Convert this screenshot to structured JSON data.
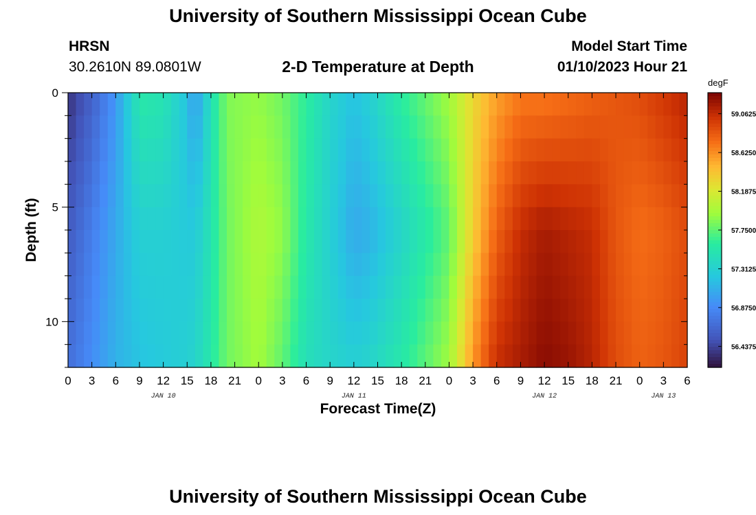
{
  "page": {
    "title_top": "University of Southern Mississippi Ocean Cube",
    "title_bottom": "University of Southern Mississippi Ocean Cube",
    "station_code": "HRSN",
    "station_coords": "30.2610N  89.0801W",
    "start_label": "Model Start Time",
    "start_value": "01/10/2023 Hour 21"
  },
  "chart_data": {
    "type": "heatmap",
    "title": "2-D Temperature at Depth",
    "xlabel": "Forecast Time(Z)",
    "ylabel": "Depth (ft)",
    "colorbar_units": "degF",
    "x_hours": [
      0,
      78
    ],
    "x_tick_labels": [
      "0",
      "3",
      "6",
      "9",
      "12",
      "15",
      "18",
      "21",
      "0",
      "3",
      "6",
      "9",
      "12",
      "15",
      "18",
      "21",
      "0",
      "3",
      "6",
      "9",
      "12",
      "15",
      "18",
      "21",
      "0",
      "3",
      "6"
    ],
    "date_labels": [
      {
        "label": "JAN 10",
        "hour": 12
      },
      {
        "label": "JAN 11",
        "hour": 36
      },
      {
        "label": "JAN 12",
        "hour": 60
      },
      {
        "label": "JAN 13",
        "hour": 75
      }
    ],
    "y_ticks": [
      0,
      5,
      10
    ],
    "ylim": [
      0,
      12
    ],
    "color_range": [
      56.2,
      59.3
    ],
    "colorbar_ticks": [
      "59.0625",
      "58.6250",
      "58.1875",
      "57.7500",
      "57.3125",
      "56.8750",
      "56.4375"
    ],
    "depths": [
      0,
      6,
      12
    ],
    "profile_hours": [
      0,
      3,
      6,
      9,
      12,
      15,
      16,
      18,
      20,
      24,
      27,
      30,
      33,
      36,
      38,
      42,
      48,
      51,
      54,
      57,
      60,
      63,
      66,
      69,
      72,
      75,
      78
    ],
    "surface_values": [
      56.35,
      56.6,
      56.95,
      57.55,
      57.5,
      57.2,
      56.95,
      57.45,
      57.85,
      57.9,
      57.8,
      57.6,
      57.35,
      57.2,
      57.3,
      57.6,
      57.95,
      58.3,
      58.55,
      58.7,
      58.7,
      58.75,
      58.8,
      58.85,
      58.9,
      59.0,
      59.1
    ],
    "middle_values": [
      56.55,
      56.8,
      57.05,
      57.3,
      57.3,
      57.25,
      57.25,
      57.5,
      57.8,
      58.0,
      57.9,
      57.55,
      57.3,
      57.05,
      57.1,
      57.35,
      57.75,
      58.35,
      58.8,
      59.05,
      59.15,
      59.1,
      59.05,
      58.85,
      58.75,
      58.8,
      58.9
    ],
    "bottom_values": [
      56.7,
      56.9,
      57.1,
      57.2,
      57.25,
      57.3,
      57.35,
      57.55,
      57.8,
      57.95,
      57.75,
      57.45,
      57.35,
      57.3,
      57.35,
      57.55,
      57.95,
      58.6,
      59.05,
      59.15,
      59.25,
      59.2,
      59.1,
      58.9,
      58.8,
      58.85,
      58.95
    ]
  }
}
